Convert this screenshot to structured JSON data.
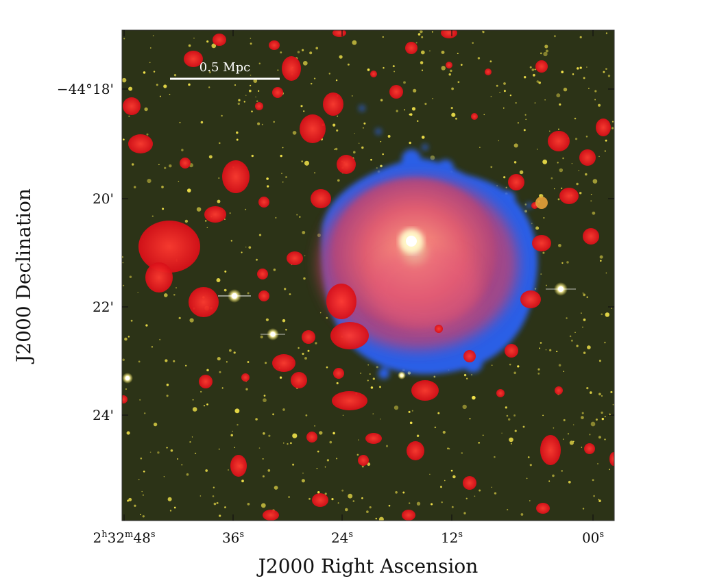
{
  "figure": {
    "scale_bar": {
      "label": "0.5 Mpc"
    },
    "x_axis": {
      "title": "J2000 Right Ascension",
      "ticks": [
        {
          "major": "2",
          "sup1": "h",
          "mid": "32",
          "sup2": "m",
          "minor": "48",
          "sup3": "s"
        },
        {
          "major": "36",
          "sup1": "s"
        },
        {
          "major": "24",
          "sup1": "s"
        },
        {
          "major": "12",
          "sup1": "s"
        },
        {
          "major": "00",
          "sup1": "s"
        }
      ]
    },
    "y_axis": {
      "title": "J2000 Declination",
      "ticks": [
        {
          "label": "−44°18'"
        },
        {
          "label": "20'"
        },
        {
          "label": "22'"
        },
        {
          "label": "24'"
        }
      ]
    },
    "colors": {
      "background": "#2c3317",
      "optical_sources": "#f2e34a",
      "radio_red": "#e0141a",
      "xray_blue": "#2a5ee6",
      "cluster_core": "#ff7a6a"
    }
  }
}
